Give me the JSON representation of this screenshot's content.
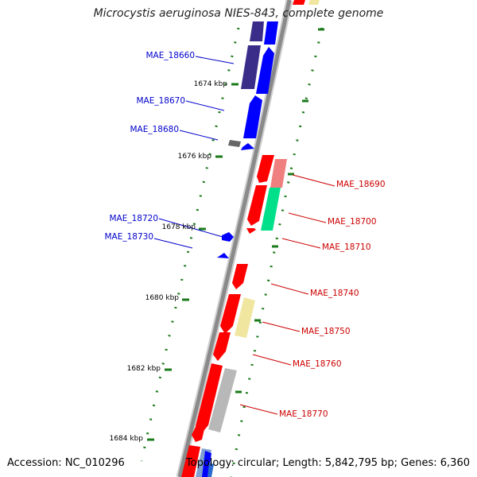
{
  "title": "Microcystis aeruginosa NIES-843, complete genome",
  "footer": {
    "accession": "Accession: NC_010296",
    "summary": "Topology: circular; Length: 5,842,795 bp; Genes: 6,360"
  },
  "ticks": [
    "1674 kbp",
    "1676 kbp",
    "1678 kbp",
    "1680 kbp",
    "1682 kbp",
    "1684 kbp"
  ],
  "genes_reverse": [
    "MAE_18660",
    "MAE_18670",
    "MAE_18680",
    "MAE_18720",
    "MAE_18730"
  ],
  "genes_forward": [
    "MAE_18690",
    "MAE_18700",
    "MAE_18710",
    "MAE_18740",
    "MAE_18750",
    "MAE_18760",
    "MAE_18770"
  ],
  "colors": {
    "backbone": "#8a8a8a",
    "forward_cds": "#ff0000",
    "reverse_cds": "#0000ff",
    "reverse_label": "#0000cc",
    "forward_label": "#cc0000",
    "tick": "#1a7a1a"
  }
}
